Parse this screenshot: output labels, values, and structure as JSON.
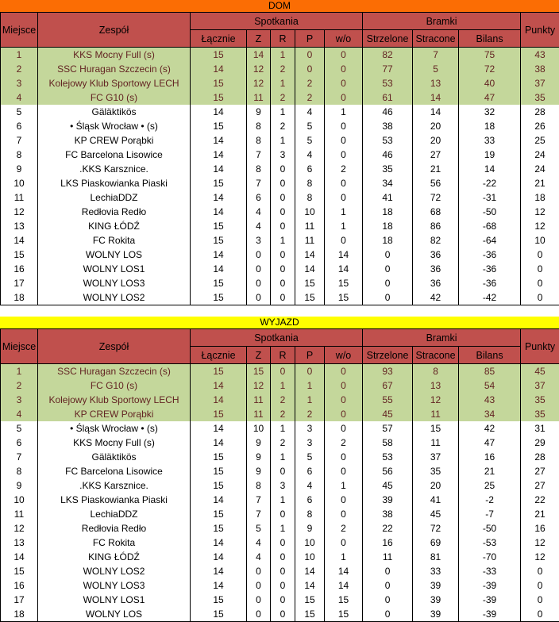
{
  "colors": {
    "dom_title_bg": "#fb6d04",
    "wyjazd_title_bg": "#ffff00",
    "header_bg": "#c0504d",
    "top4_bg": "#c4d79b",
    "top4_text": "#632423",
    "row_bg": "#ffffff",
    "row_text": "#000000"
  },
  "top_highlight_count": 4,
  "header": {
    "miejsce": "Miejsce",
    "zespol": "Zespół",
    "spotkania": "Spotkania",
    "lacznie": "Łącznie",
    "z": "Z",
    "r": "R",
    "p": "P",
    "wo": "w/o",
    "bramki": "Bramki",
    "strzelone": "Strzelone",
    "stracone": "Stracone",
    "bilans": "Bilans",
    "punkty": "Punkty"
  },
  "tables": [
    {
      "id": "dom",
      "title": "DOM",
      "rows": [
        [
          1,
          "KKS Mocny Full (s)",
          15,
          14,
          1,
          0,
          0,
          82,
          7,
          75,
          43
        ],
        [
          2,
          "SSC Huragan Szczecin (s)",
          14,
          12,
          2,
          0,
          0,
          77,
          5,
          72,
          38
        ],
        [
          3,
          "Kolejowy Klub Sportowy LECH",
          15,
          12,
          1,
          2,
          0,
          53,
          13,
          40,
          37
        ],
        [
          4,
          "FC G10 (s)",
          15,
          11,
          2,
          2,
          0,
          61,
          14,
          47,
          35
        ],
        [
          5,
          "Gäläktikös",
          14,
          9,
          1,
          4,
          1,
          46,
          14,
          32,
          28
        ],
        [
          6,
          "• Śląsk Wrocław • (s)",
          15,
          8,
          2,
          5,
          0,
          38,
          20,
          18,
          26
        ],
        [
          7,
          "KP CREW Porąbki",
          14,
          8,
          1,
          5,
          0,
          53,
          20,
          33,
          25
        ],
        [
          8,
          "FC Barcelona Lisowice",
          14,
          7,
          3,
          4,
          0,
          46,
          27,
          19,
          24
        ],
        [
          9,
          ".KKS Karsznice.",
          14,
          8,
          0,
          6,
          2,
          35,
          21,
          14,
          24
        ],
        [
          10,
          "LKS Piaskowianka Piaski",
          15,
          7,
          0,
          8,
          0,
          34,
          56,
          -22,
          21
        ],
        [
          11,
          "LechiaDDZ",
          14,
          6,
          0,
          8,
          0,
          41,
          72,
          -31,
          18
        ],
        [
          12,
          "Redłovia Redło",
          14,
          4,
          0,
          10,
          1,
          18,
          68,
          -50,
          12
        ],
        [
          13,
          "KING ŁÓDŹ",
          15,
          4,
          0,
          11,
          1,
          18,
          86,
          -68,
          12
        ],
        [
          14,
          "FC Rokita",
          15,
          3,
          1,
          11,
          0,
          18,
          82,
          -64,
          10
        ],
        [
          15,
          "WOLNY LOS",
          14,
          0,
          0,
          14,
          14,
          0,
          36,
          -36,
          0
        ],
        [
          16,
          "WOLNY LOS1",
          14,
          0,
          0,
          14,
          14,
          0,
          36,
          -36,
          0
        ],
        [
          17,
          "WOLNY LOS3",
          15,
          0,
          0,
          15,
          15,
          0,
          36,
          -36,
          0
        ],
        [
          18,
          "WOLNY LOS2",
          15,
          0,
          0,
          15,
          15,
          0,
          42,
          -42,
          0
        ]
      ]
    },
    {
      "id": "wyjazd",
      "title": "WYJAZD",
      "rows": [
        [
          1,
          "SSC Huragan Szczecin (s)",
          15,
          15,
          0,
          0,
          0,
          93,
          8,
          85,
          45
        ],
        [
          2,
          "FC G10 (s)",
          14,
          12,
          1,
          1,
          0,
          67,
          13,
          54,
          37
        ],
        [
          3,
          "Kolejowy Klub Sportowy LECH",
          14,
          11,
          2,
          1,
          0,
          55,
          12,
          43,
          35
        ],
        [
          4,
          "KP CREW Porąbki",
          15,
          11,
          2,
          2,
          0,
          45,
          11,
          34,
          35
        ],
        [
          5,
          "• Śląsk Wrocław • (s)",
          14,
          10,
          1,
          3,
          0,
          57,
          15,
          42,
          31
        ],
        [
          6,
          "KKS Mocny Full (s)",
          14,
          9,
          2,
          3,
          2,
          58,
          11,
          47,
          29
        ],
        [
          7,
          "Gäläktikös",
          15,
          9,
          1,
          5,
          0,
          53,
          37,
          16,
          28
        ],
        [
          8,
          "FC Barcelona Lisowice",
          15,
          9,
          0,
          6,
          0,
          56,
          35,
          21,
          27
        ],
        [
          9,
          ".KKS Karsznice.",
          15,
          8,
          3,
          4,
          1,
          45,
          20,
          25,
          27
        ],
        [
          10,
          "LKS Piaskowianka Piaski",
          14,
          7,
          1,
          6,
          0,
          39,
          41,
          -2,
          22
        ],
        [
          11,
          "LechiaDDZ",
          15,
          7,
          0,
          8,
          0,
          38,
          45,
          -7,
          21
        ],
        [
          12,
          "Redłovia Redło",
          15,
          5,
          1,
          9,
          2,
          22,
          72,
          -50,
          16
        ],
        [
          13,
          "FC Rokita",
          14,
          4,
          0,
          10,
          0,
          16,
          69,
          -53,
          12
        ],
        [
          14,
          "KING ŁÓDŹ",
          14,
          4,
          0,
          10,
          1,
          11,
          81,
          -70,
          12
        ],
        [
          15,
          "WOLNY LOS2",
          14,
          0,
          0,
          14,
          14,
          0,
          33,
          -33,
          0
        ],
        [
          16,
          "WOLNY LOS3",
          14,
          0,
          0,
          14,
          14,
          0,
          39,
          -39,
          0
        ],
        [
          17,
          "WOLNY LOS1",
          15,
          0,
          0,
          15,
          15,
          0,
          39,
          -39,
          0
        ],
        [
          18,
          "WOLNY LOS",
          15,
          0,
          0,
          15,
          15,
          0,
          39,
          -39,
          0
        ]
      ]
    }
  ]
}
